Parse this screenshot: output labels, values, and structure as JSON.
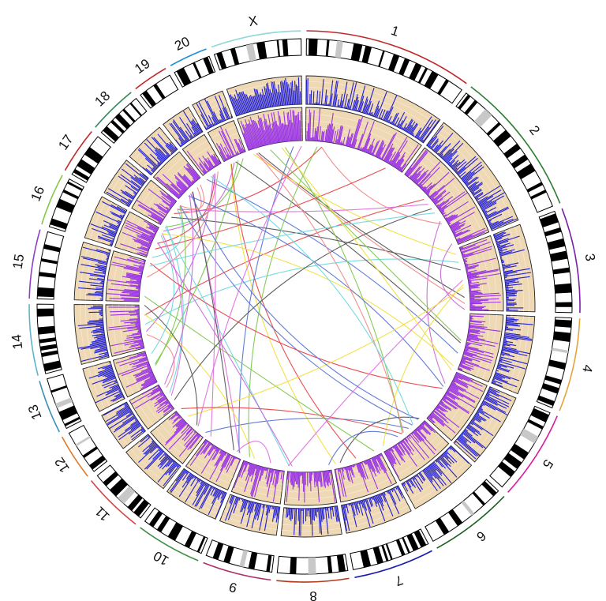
{
  "figure": {
    "type": "circos-genome-plot",
    "track_colors": {
      "outer_histogram": "#1f1fd6",
      "inner_histogram": "#9a35e6",
      "track_background": "#efd8b4",
      "ideogram_dark": "#000000",
      "ideogram_gap": "#c8c8c8"
    },
    "chromosomes": [
      {
        "name": "1",
        "label": "1",
        "size": 225,
        "color": "#c0282b"
      },
      {
        "name": "2",
        "label": "2",
        "size": 195,
        "color": "#2e7d32"
      },
      {
        "name": "3",
        "label": "3",
        "size": 140,
        "color": "#7b1fa2"
      },
      {
        "name": "4",
        "label": "4",
        "size": 125,
        "color": "#e6a23c"
      },
      {
        "name": "5",
        "label": "5",
        "size": 120,
        "color": "#d81b9c"
      },
      {
        "name": "6",
        "label": "6",
        "size": 112,
        "color": "#1b5e20"
      },
      {
        "name": "7",
        "label": "7",
        "size": 108,
        "color": "#1a1ab0"
      },
      {
        "name": "8",
        "label": "8",
        "size": 96,
        "color": "#b03a1a"
      },
      {
        "name": "9",
        "label": "9",
        "size": 92,
        "color": "#b0306a"
      },
      {
        "name": "10",
        "label": "10",
        "size": 88,
        "color": "#3e8e41"
      },
      {
        "name": "11",
        "label": "11",
        "size": 82,
        "color": "#d64545"
      },
      {
        "name": "12",
        "label": "12",
        "size": 62,
        "color": "#e07a2a"
      },
      {
        "name": "13",
        "label": "13",
        "size": 72,
        "color": "#3a8fb7"
      },
      {
        "name": "14",
        "label": "14",
        "size": 95,
        "color": "#5fb3c9"
      },
      {
        "name": "15",
        "label": "15",
        "size": 92,
        "color": "#8e3fc8"
      },
      {
        "name": "16",
        "label": "16",
        "size": 70,
        "color": "#86c74a"
      },
      {
        "name": "17",
        "label": "17",
        "size": 62,
        "color": "#c0282b"
      },
      {
        "name": "18",
        "label": "18",
        "size": 66,
        "color": "#2f8a5a"
      },
      {
        "name": "19",
        "label": "19",
        "size": 48,
        "color": "#c0282b"
      },
      {
        "name": "20",
        "label": "20",
        "size": 52,
        "color": "#1a8fd6"
      },
      {
        "name": "X",
        "label": "X",
        "size": 120,
        "color": "#8fd8d8"
      }
    ],
    "links": {
      "count": 62,
      "palette": [
        "#e8454a",
        "#5a74d6",
        "#7ec850",
        "#e070e0",
        "#f0e040",
        "#70d8e0",
        "#555555",
        "#f08a8a",
        "#c86ad8"
      ]
    }
  }
}
